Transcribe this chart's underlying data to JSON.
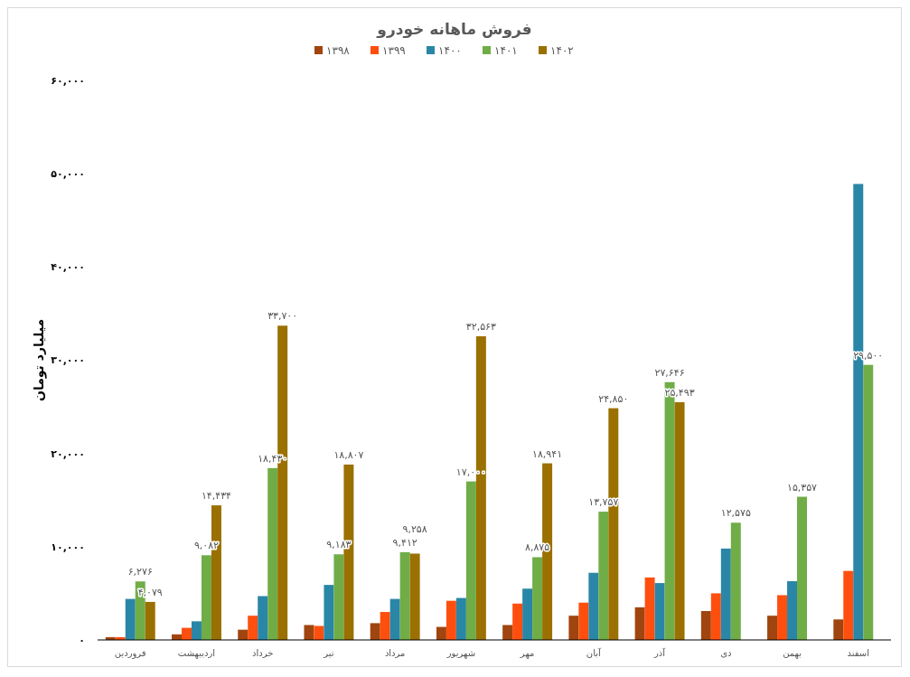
{
  "chart_data": {
    "type": "bar",
    "title": "فروش ماهانه خودرو",
    "ylabel": "میلیارد تومان",
    "categories": [
      "فروردین",
      "اردیبهشت",
      "خرداد",
      "تیر",
      "مرداد",
      "شهریور",
      "مهر",
      "آبان",
      "آذر",
      "دی",
      "بهمن",
      "اسفند"
    ],
    "series": [
      {
        "name": "۱۳۹۸",
        "color": "#a0450f",
        "values": [
          300,
          600,
          1100,
          1600,
          1800,
          1400,
          1600,
          2600,
          3500,
          3100,
          2600,
          2200
        ]
      },
      {
        "name": "۱۳۹۹",
        "color": "#ff4f0f",
        "values": [
          300,
          1300,
          2600,
          1500,
          3000,
          4200,
          3900,
          4000,
          6700,
          5000,
          4800,
          7400
        ]
      },
      {
        "name": "۱۴۰۰",
        "color": "#2a86a6",
        "values": [
          4400,
          2000,
          4700,
          5900,
          4400,
          4500,
          5500,
          7200,
          6100,
          9800,
          6300,
          48900
        ]
      },
      {
        "name": "۱۴۰۱",
        "color": "#70ad47",
        "values": [
          6276,
          9082,
          18430,
          9183,
          9412,
          17000,
          8875,
          13757,
          27646,
          12575,
          15357,
          29500
        ],
        "value_labels": [
          "۶,۲۷۶",
          "۹,۰۸۲",
          "۱۸,۴۳۰",
          "۹,۱۸۳",
          "۹,۴۱۲",
          "۱۷,۰۰۰",
          "۸,۸۷۵",
          "۱۳,۷۵۷",
          "۲۷,۶۴۶",
          "۱۲,۵۷۵",
          "۱۵,۳۵۷",
          "۲۹,۵۰۰"
        ]
      },
      {
        "name": "۱۴۰۲",
        "color": "#9a7000",
        "values": [
          4079,
          14434,
          33700,
          18807,
          9258,
          32563,
          18941,
          24850,
          25493,
          null,
          null,
          null
        ],
        "value_labels": [
          "۴,۰۷۹",
          "۱۴,۴۳۴",
          "۳۳,۷۰۰",
          "۱۸,۸۰۷",
          "۹,۲۵۸",
          "۳۲,۵۶۳",
          "۱۸,۹۴۱",
          "۲۴,۸۵۰",
          "۲۵,۴۹۳",
          null,
          null,
          null
        ]
      }
    ],
    "ylim": [
      0,
      60000
    ],
    "yticks": [
      {
        "value": 0,
        "label": "۰"
      },
      {
        "value": 10000,
        "label": "۱۰,۰۰۰"
      },
      {
        "value": 20000,
        "label": "۲۰,۰۰۰"
      },
      {
        "value": 30000,
        "label": "۳۰,۰۰۰"
      },
      {
        "value": 40000,
        "label": "۴۰,۰۰۰"
      },
      {
        "value": 50000,
        "label": "۵۰,۰۰۰"
      },
      {
        "value": 60000,
        "label": "۶۰,۰۰۰"
      }
    ],
    "legend": "top",
    "grid": false
  }
}
